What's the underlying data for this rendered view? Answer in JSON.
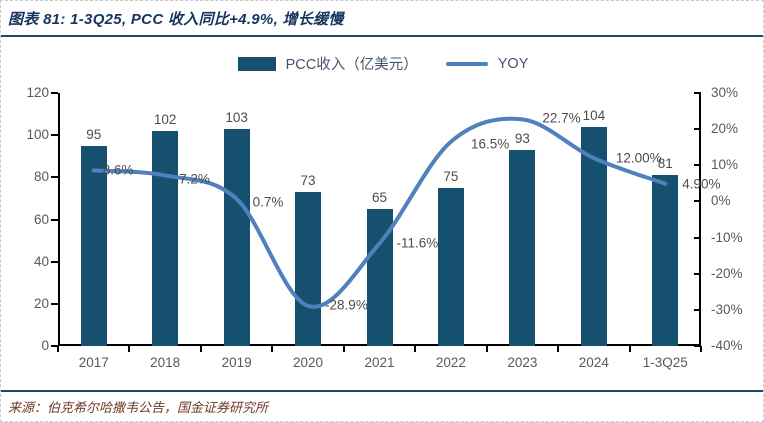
{
  "figure": {
    "title": "图表 81: 1-3Q25, PCC 收入同比+4.9%, 增长缓慢",
    "source": "来源：伯克希尔哈撒韦公告，国金证券研究所"
  },
  "legend": {
    "bar_label": "PCC收入（亿美元）",
    "line_label": "YOY"
  },
  "colors": {
    "bar": "#15506e",
    "line": "#4f81bd",
    "title": "#14355e",
    "rule": "#1a4a73",
    "axis_text": "#595959",
    "data_label": "#4d4d4d",
    "source_text": "#6d3a28"
  },
  "chart_data": {
    "type": "bar",
    "subtype": "bar+line-dual-axis",
    "title": "图表 81: 1-3Q25, PCC 收入同比+4.9%, 增长缓慢",
    "categories": [
      "2017",
      "2018",
      "2019",
      "2020",
      "2021",
      "2022",
      "2023",
      "2024",
      "1-3Q25"
    ],
    "series": [
      {
        "name": "PCC收入（亿美元）",
        "type": "bar",
        "axis": "left",
        "color": "#15506e",
        "values": [
          95,
          102,
          103,
          73,
          65,
          75,
          93,
          104,
          81
        ],
        "labels": [
          "95",
          "102",
          "103",
          "73",
          "65",
          "75",
          "93",
          "104",
          "81"
        ]
      },
      {
        "name": "YOY",
        "type": "line",
        "axis": "right",
        "color": "#4f81bd",
        "values": [
          8.6,
          7.2,
          0.7,
          -28.9,
          -11.6,
          16.5,
          22.7,
          12.0,
          4.9
        ],
        "labels": [
          "8.6%",
          "7.2%",
          "0.7%",
          "-28.9%",
          "-11.6%",
          "16.5%",
          "22.7%",
          "12.00%",
          "4.90%"
        ]
      }
    ],
    "left_axis": {
      "min": 0,
      "max": 120,
      "step": 20,
      "ticks": [
        "0",
        "20",
        "40",
        "60",
        "80",
        "100",
        "120"
      ]
    },
    "right_axis": {
      "min": -40,
      "max": 30,
      "step": 10,
      "ticks": [
        "-40%",
        "-30%",
        "-20%",
        "-10%",
        "0%",
        "10%",
        "20%",
        "30%"
      ]
    },
    "grid": false,
    "legend_position": "top",
    "xlabel": "",
    "ylabel_left": "亿美元",
    "ylabel_right": "%"
  }
}
